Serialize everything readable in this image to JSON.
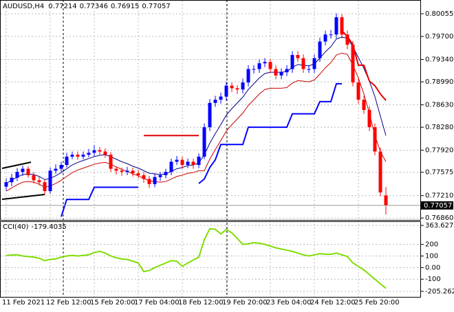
{
  "chart_data": [
    {
      "type": "candlestick",
      "title": "AUDUSD,H4",
      "categories": [
        "11 Feb 2021",
        null,
        null,
        null,
        null,
        null,
        null,
        null,
        "12 Feb 12:00",
        null,
        null,
        null,
        null,
        null,
        null,
        null,
        "15 Feb 20:00",
        null,
        null,
        null,
        null,
        null,
        null,
        null,
        "17 Feb 04:00",
        null,
        null,
        null,
        null,
        null,
        null,
        null,
        "18 Feb 12:00",
        null,
        null,
        null,
        null,
        null,
        null,
        null,
        "19 Feb 20:00",
        null,
        null,
        null,
        null,
        null,
        null,
        null,
        "23 Feb 04:00",
        null,
        null,
        null,
        null,
        null,
        null,
        null,
        "24 Feb 12:00",
        null,
        null,
        null,
        null,
        null,
        null,
        null,
        "25 Feb 20:00",
        null,
        null,
        null,
        null,
        null
      ],
      "open": [
        0.7735,
        0.7742,
        0.7749,
        0.7758,
        0.7763,
        0.7753,
        0.7745,
        0.7742,
        0.7728,
        0.776,
        0.7763,
        0.7769,
        0.7782,
        0.7785,
        0.7782,
        0.7785,
        0.7788,
        0.7792,
        0.779,
        0.7785,
        0.7763,
        0.776,
        0.7758,
        0.776,
        0.7756,
        0.7753,
        0.7747,
        0.7739,
        0.775,
        0.7753,
        0.7758,
        0.7774,
        0.7777,
        0.7769,
        0.7774,
        0.7769,
        0.7782,
        0.7828,
        0.7866,
        0.7871,
        0.7876,
        0.7893,
        0.7889,
        0.7887,
        0.7898,
        0.7919,
        0.7919,
        0.7928,
        0.793,
        0.7919,
        0.7909,
        0.7914,
        0.7919,
        0.7941,
        0.7936,
        0.7919,
        0.7919,
        0.7936,
        0.7962,
        0.7973,
        0.7973,
        0.8,
        0.7973,
        0.7957,
        0.7898,
        0.7871,
        0.7855,
        0.7828,
        0.779,
        0.77214
      ],
      "high": [
        0.7748,
        0.7755,
        0.7764,
        0.7768,
        0.7767,
        0.7758,
        0.775,
        0.7746,
        0.7765,
        0.777,
        0.7774,
        0.7788,
        0.779,
        0.779,
        0.779,
        0.7794,
        0.78,
        0.7797,
        0.7795,
        0.7789,
        0.7767,
        0.7765,
        0.7766,
        0.7765,
        0.7761,
        0.7758,
        0.7752,
        0.7756,
        0.7758,
        0.7763,
        0.7779,
        0.7783,
        0.7782,
        0.7779,
        0.7779,
        0.7787,
        0.7834,
        0.7872,
        0.7877,
        0.7882,
        0.7899,
        0.7898,
        0.7894,
        0.7904,
        0.7925,
        0.7925,
        0.7934,
        0.7936,
        0.7935,
        0.7925,
        0.792,
        0.7925,
        0.7947,
        0.7947,
        0.7942,
        0.7925,
        0.7942,
        0.7968,
        0.7979,
        0.798,
        0.8006,
        0.8005,
        0.7979,
        0.7963,
        0.7904,
        0.7877,
        0.7861,
        0.7834,
        0.7796,
        0.77346
      ],
      "low": [
        0.7729,
        0.7736,
        0.7744,
        0.7752,
        0.7749,
        0.774,
        0.7737,
        0.7722,
        0.7724,
        0.7755,
        0.7758,
        0.7765,
        0.7778,
        0.7777,
        0.7778,
        0.7781,
        0.7783,
        0.7785,
        0.778,
        0.7758,
        0.7754,
        0.7752,
        0.7753,
        0.7751,
        0.7748,
        0.7741,
        0.7733,
        0.7734,
        0.7744,
        0.7748,
        0.7753,
        0.7769,
        0.7763,
        0.7764,
        0.7763,
        0.7764,
        0.7778,
        0.7822,
        0.786,
        0.7865,
        0.787,
        0.7883,
        0.788,
        0.7881,
        0.7892,
        0.7912,
        0.7913,
        0.7922,
        0.7913,
        0.7903,
        0.7903,
        0.7908,
        0.7913,
        0.793,
        0.7913,
        0.7913,
        0.7913,
        0.793,
        0.7956,
        0.7967,
        0.7967,
        0.7967,
        0.795,
        0.7892,
        0.7865,
        0.7849,
        0.7822,
        0.7784,
        0.772,
        0.76915
      ],
      "close": [
        0.7742,
        0.7749,
        0.7758,
        0.7763,
        0.7753,
        0.7745,
        0.7742,
        0.7728,
        0.776,
        0.7763,
        0.7769,
        0.7782,
        0.7785,
        0.7782,
        0.7785,
        0.7788,
        0.7792,
        0.779,
        0.7785,
        0.7763,
        0.776,
        0.7758,
        0.776,
        0.7756,
        0.7753,
        0.7747,
        0.7739,
        0.775,
        0.7753,
        0.7758,
        0.7774,
        0.7777,
        0.7769,
        0.7774,
        0.7769,
        0.7782,
        0.7828,
        0.7866,
        0.7871,
        0.7876,
        0.7893,
        0.7889,
        0.7887,
        0.7898,
        0.7919,
        0.7919,
        0.7928,
        0.793,
        0.7919,
        0.7909,
        0.7914,
        0.7919,
        0.7941,
        0.7936,
        0.7919,
        0.7919,
        0.7936,
        0.7962,
        0.7973,
        0.7973,
        0.8,
        0.7973,
        0.7957,
        0.7898,
        0.7871,
        0.7855,
        0.7828,
        0.779,
        0.7726,
        0.77057
      ],
      "up_color": "#0000ff",
      "down_color": "#ff0000",
      "lines": [
        {
          "color": "#00008b",
          "width": 1,
          "values": [
            0.774,
            0.7745,
            0.775,
            0.7754,
            0.7755,
            0.7754,
            0.7751,
            0.7746,
            0.7748,
            0.7752,
            0.7757,
            0.7763,
            0.7769,
            0.7773,
            0.7776,
            0.7779,
            0.7782,
            0.7784,
            0.7785,
            0.7782,
            0.7778,
            0.7774,
            0.7771,
            0.7767,
            0.7764,
            0.776,
            0.7756,
            0.7755,
            0.7754,
            0.7755,
            0.7759,
            0.7763,
            0.7765,
            0.7768,
            0.7769,
            0.7772,
            0.7785,
            0.7803,
            0.7818,
            0.7832,
            0.7847,
            0.7857,
            0.7866,
            0.7875,
            0.7887,
            0.7896,
            0.7905,
            0.7912,
            0.7914,
            0.7914,
            0.7914,
            0.7915,
            0.7922,
            0.7926,
            0.7925,
            0.7924,
            0.7927,
            0.7936,
            0.7946,
            0.7954,
            0.7966,
            0.7969,
            0.7967,
            0.7954,
            0.7937,
            0.792,
            0.79,
            0.7876,
            0.7845,
            0.7815
          ]
        },
        {
          "color": "#cc0000",
          "width": 1,
          "values": [
            0.7728,
            0.7733,
            0.7738,
            0.7742,
            0.7743,
            0.7742,
            0.7739,
            0.7734,
            0.7736,
            0.774,
            0.7745,
            0.7751,
            0.7757,
            0.7761,
            0.7764,
            0.7767,
            0.777,
            0.7772,
            0.7773,
            0.777,
            0.7766,
            0.7762,
            0.7759,
            0.7755,
            0.7752,
            0.7748,
            0.7744,
            0.7743,
            0.7742,
            0.7743,
            0.7747,
            0.7751,
            0.7753,
            0.7756,
            0.7757,
            0.776,
            0.776,
            0.7778,
            0.7793,
            0.7807,
            0.7822,
            0.7832,
            0.7841,
            0.785,
            0.7862,
            0.7871,
            0.788,
            0.7887,
            0.7889,
            0.7889,
            0.7889,
            0.789,
            0.7897,
            0.7901,
            0.79,
            0.7899,
            0.7902,
            0.7911,
            0.7921,
            0.7929,
            0.7941,
            0.7944,
            0.7942,
            0.7925,
            0.7905,
            0.788,
            0.785,
            0.7815,
            0.779,
            0.7774
          ]
        },
        {
          "color": "#0000ff",
          "width": 2,
          "values": [
            null,
            null,
            null,
            null,
            null,
            null,
            null,
            null,
            null,
            null,
            0.7688,
            0.7715,
            0.7715,
            0.7715,
            0.7715,
            0.7715,
            0.7734,
            0.7734,
            0.7734,
            0.7734,
            0.7734,
            0.7734,
            0.7734,
            0.7734,
            0.7734,
            null,
            null,
            null,
            null,
            null,
            null,
            null,
            null,
            null,
            null,
            0.774,
            0.7747,
            0.7765,
            0.7777,
            0.7801,
            0.7801,
            0.7801,
            0.7801,
            0.7801,
            0.7828,
            0.7828,
            0.7828,
            0.7828,
            0.7828,
            0.7828,
            0.7828,
            0.7828,
            0.7849,
            0.7849,
            0.7849,
            0.7849,
            0.7849,
            0.7868,
            0.7868,
            0.7868,
            0.7896,
            0.7896,
            null,
            null,
            null,
            null,
            null,
            null,
            null,
            null
          ]
        },
        {
          "color": "#e00000",
          "width": 2,
          "values": [
            null,
            null,
            null,
            null,
            null,
            null,
            null,
            null,
            null,
            null,
            null,
            null,
            null,
            null,
            null,
            null,
            null,
            null,
            null,
            null,
            null,
            null,
            null,
            null,
            null,
            0.7815,
            0.7815,
            0.7815,
            0.7815,
            0.7815,
            0.7815,
            0.7815,
            0.7815,
            0.7815,
            0.7815,
            0.7815,
            null,
            null,
            null,
            null,
            null,
            null,
            null,
            null,
            null,
            null,
            null,
            null,
            null,
            null,
            null,
            null,
            null,
            null,
            null,
            null,
            null,
            null,
            null,
            null,
            null,
            0.7979,
            0.797,
            0.7957,
            0.7925,
            0.7925,
            0.79,
            0.7893,
            0.788,
            0.787
          ]
        }
      ],
      "ylim": [
        0.7683,
        0.8027
      ],
      "yticks": [
        0.80055,
        {
          "value": 0.797,
          "label": "0.79700"
        },
        {
          "value": 0.7934,
          "label": "0.79340"
        },
        {
          "value": 0.7899,
          "label": "0.78990"
        },
        {
          "value": 0.7863,
          "label": "0.78630"
        },
        {
          "value": 0.7828,
          "label": "0.78280"
        },
        {
          "value": 0.7792,
          "label": "0.77920"
        },
        0.77575,
        {
          "value": 0.7721,
          "label": "0.77210"
        },
        {
          "value": 0.7686,
          "label": "0.76860"
        }
      ],
      "grid": true
    },
    {
      "type": "line",
      "title": "CCI(40)",
      "series": [
        {
          "color": "#7fdd00",
          "values": [
            105,
            108,
            110,
            100,
            95,
            90,
            80,
            60,
            70,
            75,
            90,
            100,
            105,
            100,
            105,
            110,
            130,
            140,
            125,
            100,
            85,
            75,
            70,
            55,
            40,
            -35,
            -25,
            0,
            20,
            40,
            60,
            55,
            10,
            40,
            65,
            90,
            240,
            335,
            330,
            290,
            330,
            300,
            250,
            200,
            205,
            215,
            210,
            200,
            185,
            170,
            160,
            150,
            140,
            125,
            110,
            100,
            110,
            120,
            115,
            115,
            125,
            110,
            95,
            40,
            10,
            -20,
            -60,
            -100,
            -140,
            -179.4035
          ]
        }
      ],
      "ylim": [
        -205.2621,
        363.627
      ],
      "yticks": [
        363.627,
        200,
        100,
        {
          "value": 0,
          "label": "0.00"
        },
        -100,
        -205.2621
      ],
      "grid": true
    }
  ]
}
